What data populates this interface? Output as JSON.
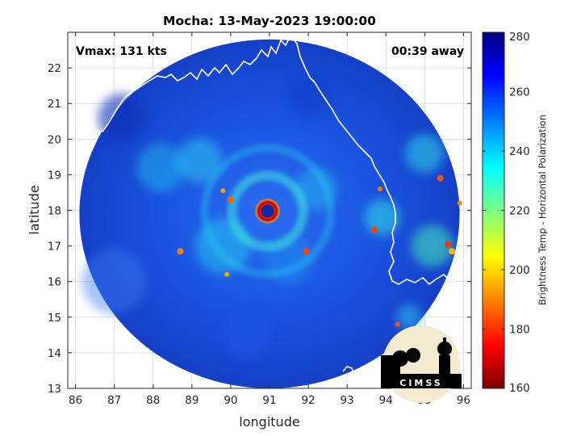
{
  "chart_data": {
    "type": "heatmap",
    "title": "Mocha: 13-May-2023 19:00:00",
    "xlabel": "longitude",
    "ylabel": "latitude",
    "xlim": [
      85.8,
      96.2
    ],
    "ylim": [
      13,
      23
    ],
    "xticks": [
      86,
      87,
      88,
      89,
      90,
      91,
      92,
      93,
      94,
      95,
      96
    ],
    "yticks": [
      13,
      14,
      15,
      16,
      17,
      18,
      19,
      20,
      21,
      22
    ],
    "grid": true,
    "annotations": {
      "vmax": "Vmax: 131 kts",
      "away": "00:39 away"
    },
    "colorbar": {
      "label": "Brightness Temp - Horizontal Polarization",
      "range": [
        160,
        280
      ],
      "ticks": [
        160,
        180,
        200,
        220,
        240,
        260,
        280
      ],
      "colormap": "jet"
    },
    "storm": {
      "eye_center": [
        90.95,
        17.98
      ],
      "swath_center": [
        91.0,
        17.9
      ],
      "swath_radius_deg": 4.9
    },
    "logo_text": "CIMSS"
  },
  "colors": {
    "coastline": "#ffffff",
    "background": "#ffffff",
    "grid": "#d9d9d9"
  }
}
